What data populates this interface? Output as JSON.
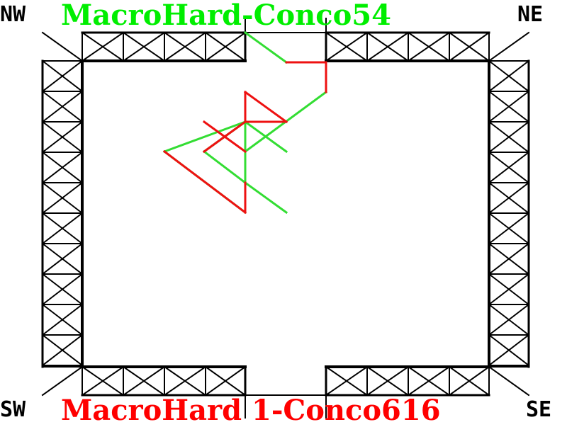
{
  "corners": {
    "nw": "NW",
    "ne": "NE",
    "sw": "SW",
    "se": "SE"
  },
  "players": {
    "top": {
      "name": "MacroHard-Conco54",
      "color": "#00ee00"
    },
    "bottom": {
      "name": "MacroHard 1-Conco616",
      "color": "#ff0000"
    }
  },
  "colors": {
    "wall": "#000000",
    "background": "#ffffff",
    "trail_top": "#33dd33",
    "trail_bottom": "#ee1111"
  }
}
